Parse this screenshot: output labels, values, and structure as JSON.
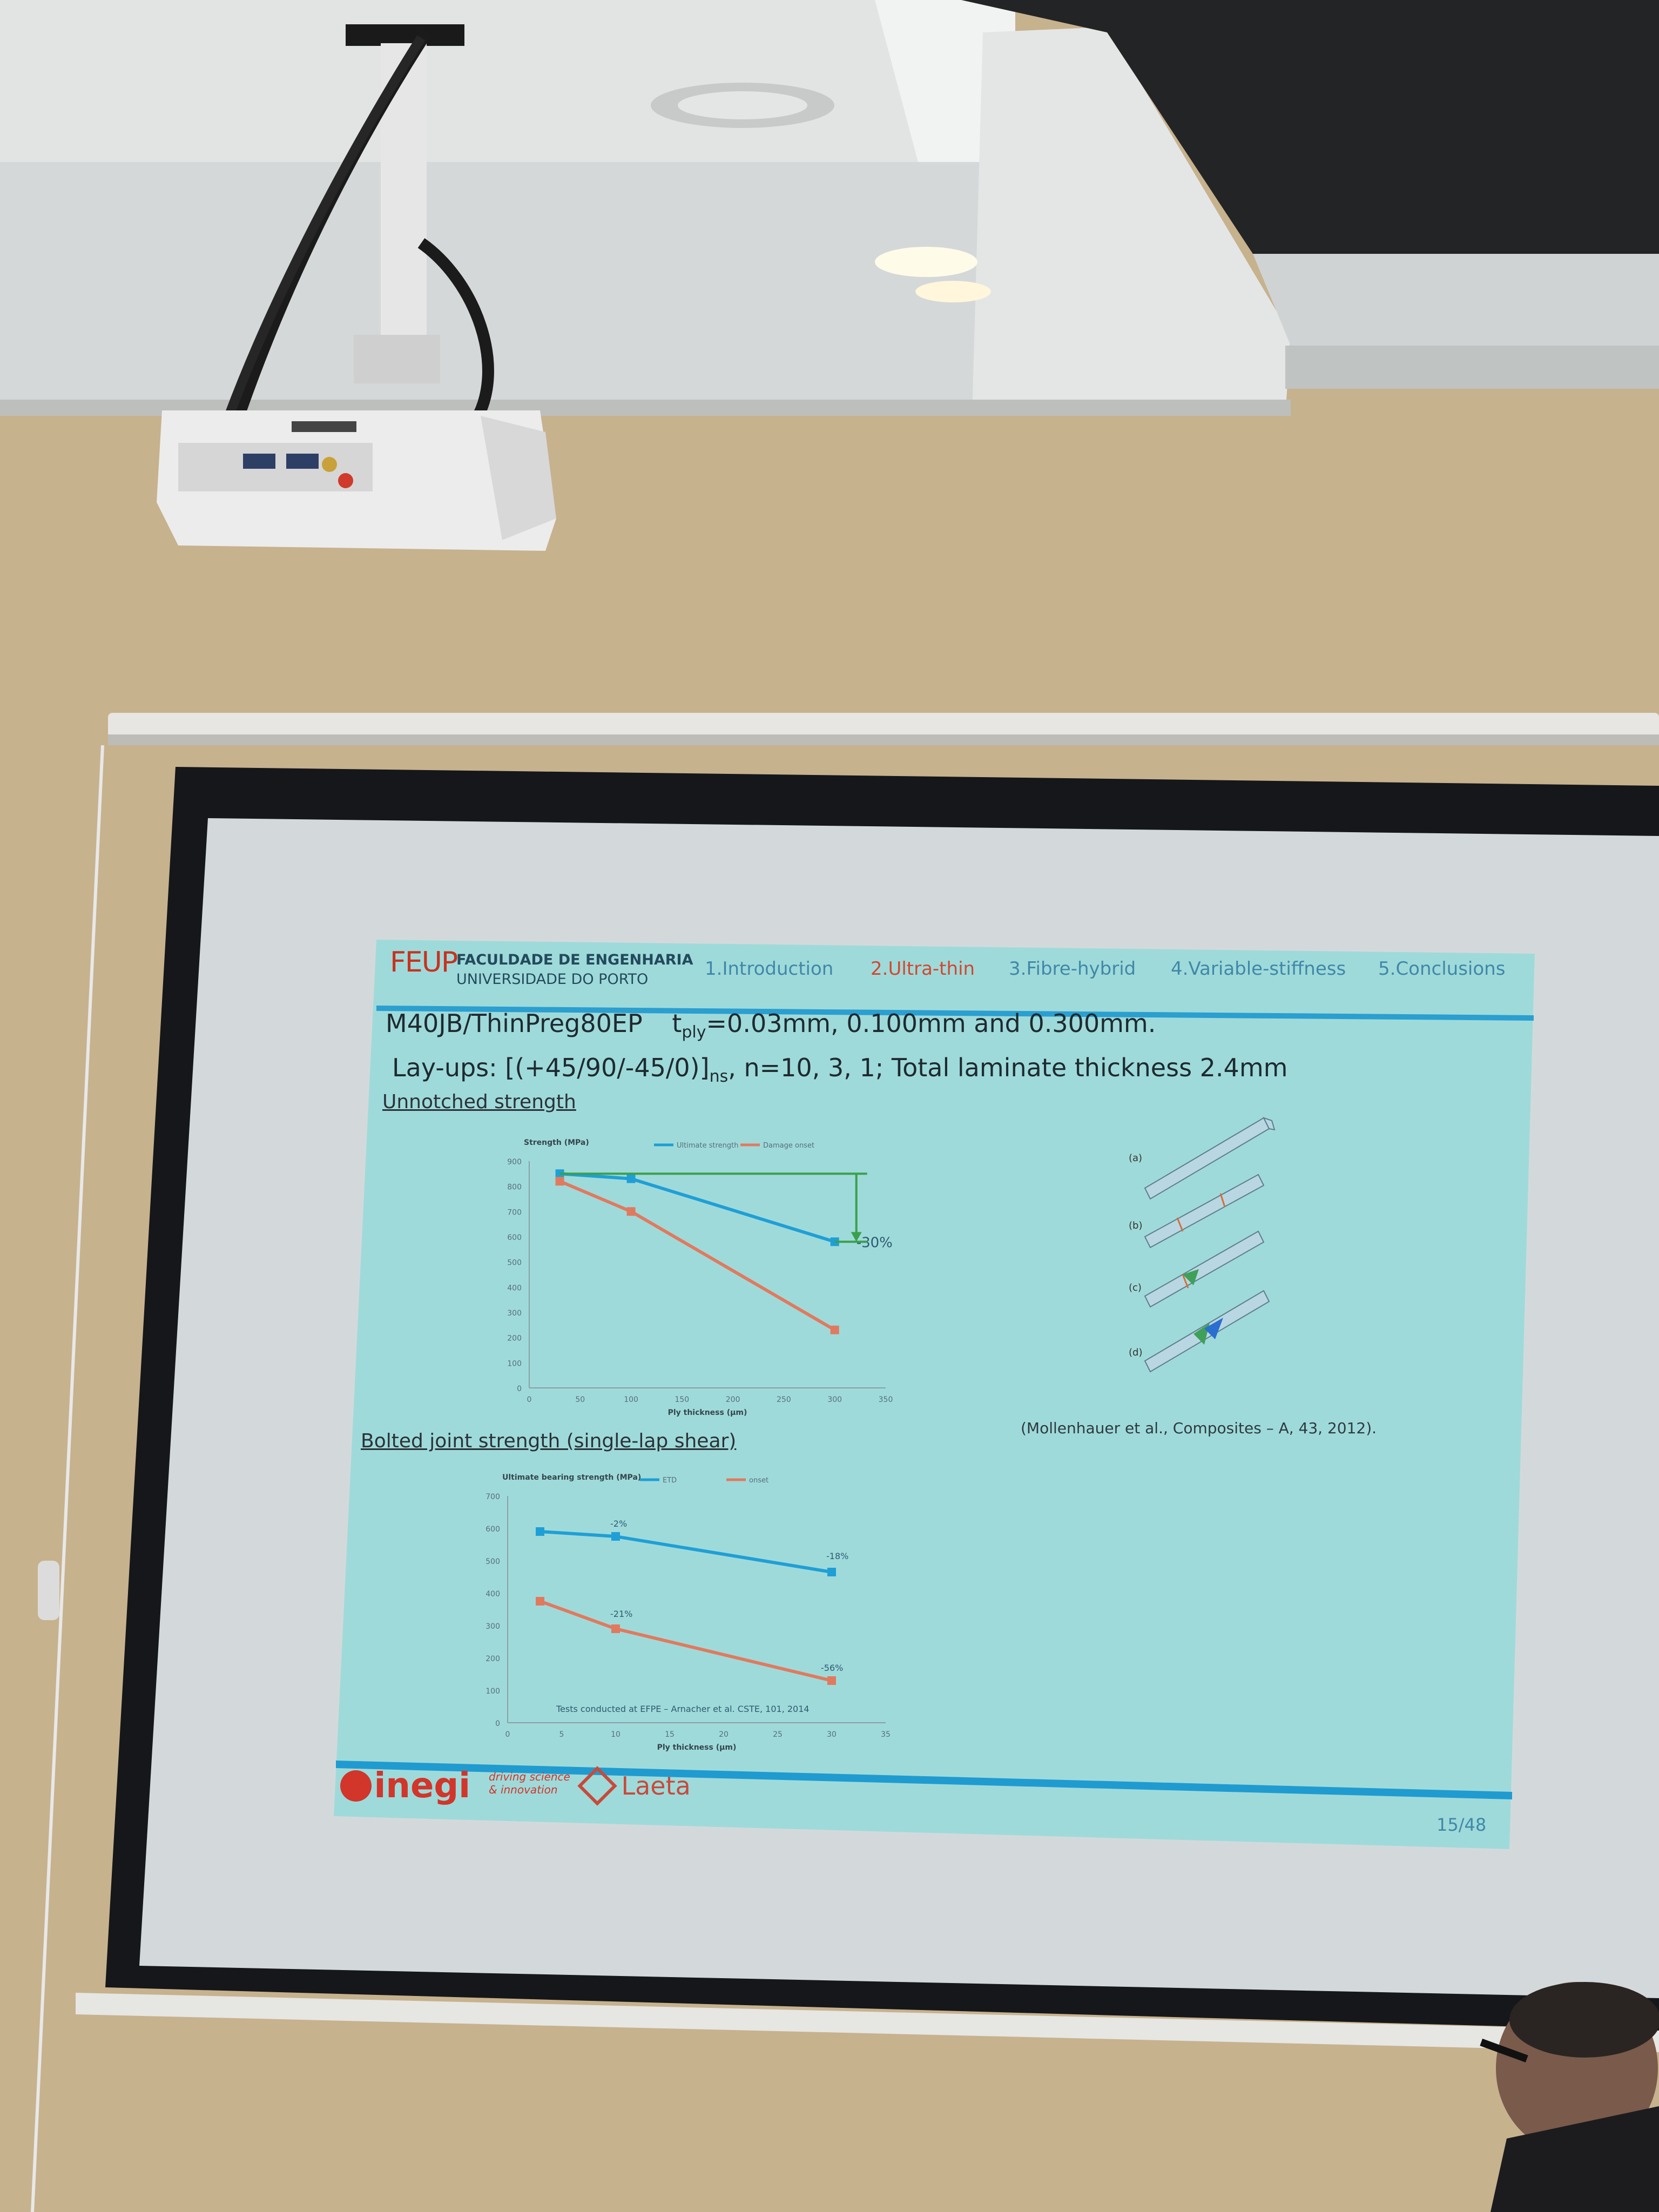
{
  "slide": {
    "header": {
      "logo_main": "FEUP",
      "logo_line1": "FACULDADE DE ENGENHARIA",
      "logo_line2": "UNIVERSIDADE DO PORTO",
      "nav": [
        {
          "label": "1.Introduction",
          "active": false
        },
        {
          "label": "2.Ultra-thin",
          "active": true
        },
        {
          "label": "3.Fibre-hybrid",
          "active": false
        },
        {
          "label": "4.Variable-stiffness",
          "active": false
        },
        {
          "label": "5.Conclusions",
          "active": false
        }
      ]
    },
    "material_line": {
      "material": "M40JB/ThinPreg80EP",
      "t": "t",
      "t_sub": "ply",
      "thickness": "=0.03mm, 0.100mm and 0.300mm."
    },
    "layup_line": {
      "prefix": "Lay-ups: [(+45/90/-45/0)]",
      "sub": "ns",
      "suffix": ", n=10, 3, 1; Total laminate thickness 2.4mm"
    },
    "section1": "Unnotched strength",
    "section2": "Bolted joint strength (single-lap shear)",
    "figure_labels": [
      "(a)",
      "(b)",
      "(c)",
      "(d)"
    ],
    "citation": "(Mollenhauer et al., Composites – A, 43, 2012).",
    "footer": {
      "inegi": "inegi",
      "inegi_tag1": "driving science",
      "inegi_tag2": "& innovation",
      "laeta": "Laeta",
      "page": "15/48"
    }
  },
  "chart_data": [
    {
      "type": "line",
      "title": "",
      "ylabel": "Strength (MPa)",
      "xlabel": "Ply thickness (µm)",
      "ylim": [
        0,
        900
      ],
      "xlim": [
        0,
        350
      ],
      "yticks": [
        0,
        100,
        200,
        300,
        400,
        500,
        600,
        700,
        800,
        900
      ],
      "xticks": [
        0,
        50,
        100,
        150,
        200,
        250,
        300,
        350
      ],
      "legend_position": "top",
      "series": [
        {
          "name": "Ultimate strength",
          "color": "#1f9fd6",
          "x": [
            30,
            100,
            300
          ],
          "y": [
            850,
            830,
            580
          ]
        },
        {
          "name": "Damage onset",
          "color": "#e07a5f",
          "x": [
            30,
            100,
            300
          ],
          "y": [
            820,
            700,
            230
          ]
        }
      ],
      "annotations": [
        {
          "text": "-30%"
        }
      ]
    },
    {
      "type": "line",
      "title": "",
      "ylabel": "Ultimate bearing strength (MPa)",
      "xlabel": "Ply thickness (µm)",
      "ylim": [
        0,
        700
      ],
      "xlim": [
        0,
        35
      ],
      "yticks": [
        0,
        100,
        200,
        300,
        400,
        500,
        600,
        700
      ],
      "xticks": [
        0,
        5,
        10,
        15,
        20,
        25,
        30,
        35
      ],
      "legend_position": "top",
      "series": [
        {
          "name": "ETD",
          "color": "#1f9fd6",
          "x": [
            3,
            10,
            30
          ],
          "y": [
            590,
            575,
            465
          ]
        },
        {
          "name": "onset",
          "color": "#e07a5f",
          "x": [
            3,
            10,
            30
          ],
          "y": [
            375,
            290,
            130
          ]
        }
      ],
      "annotations": [
        {
          "text": "-2%"
        },
        {
          "text": "-18%"
        },
        {
          "text": "-21%"
        },
        {
          "text": "-56%"
        },
        {
          "text": "Tests conducted at EFPE – Arnacher et al. CSTE, 101, 2014"
        }
      ]
    }
  ]
}
